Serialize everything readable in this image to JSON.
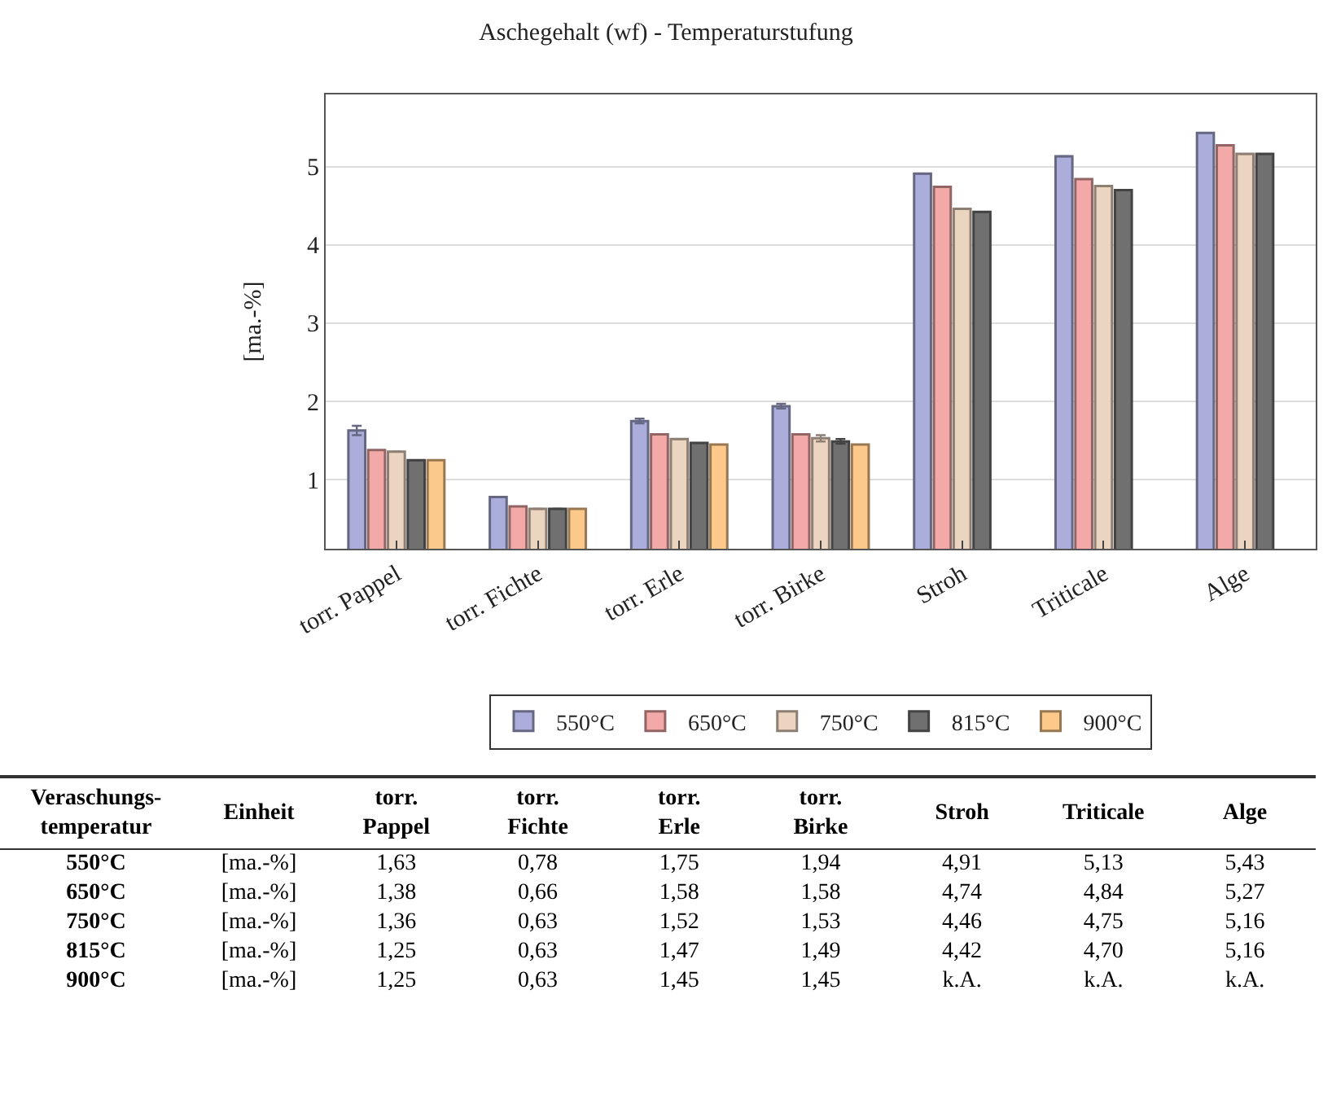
{
  "chart_data": {
    "type": "bar",
    "title": "Aschegehalt (wf) - Temperaturstufung",
    "ylabel": "[ma.-%]",
    "categories": [
      "torr. Pappel",
      "torr. Fichte",
      "torr. Erle",
      "torr. Birke",
      "Stroh",
      "Triticale",
      "Alge"
    ],
    "series": [
      {
        "name": "550°C",
        "color": "#abaedb",
        "values": [
          1.63,
          0.78,
          1.75,
          1.94,
          4.91,
          5.13,
          5.43
        ],
        "errors": [
          0.06,
          null,
          0.03,
          0.03,
          null,
          null,
          null
        ],
        "value_labels": [
          "1,63",
          "0,78",
          "1,75",
          "1,94",
          "4,91",
          "5,13",
          "5,43"
        ]
      },
      {
        "name": "650°C",
        "color": "#f4a9a9",
        "values": [
          1.38,
          0.66,
          1.58,
          1.58,
          4.74,
          4.84,
          5.27
        ],
        "value_labels": [
          "1,38",
          "0,66",
          "1,58",
          "1,58",
          "4,74",
          "4,84",
          "5,27"
        ]
      },
      {
        "name": "750°C",
        "color": "#ecd5c0",
        "values": [
          1.36,
          0.63,
          1.52,
          1.53,
          4.46,
          4.75,
          5.16
        ],
        "errors": [
          null,
          null,
          null,
          0.04,
          null,
          null,
          null
        ],
        "value_labels": [
          "1,36",
          "0,63",
          "1,52",
          "1,53",
          "4,46",
          "4,75",
          "5,16"
        ]
      },
      {
        "name": "815°C",
        "color": "#707070",
        "values": [
          1.25,
          0.63,
          1.47,
          1.49,
          4.42,
          4.7,
          5.16
        ],
        "errors": [
          null,
          null,
          null,
          0.03,
          null,
          null,
          null
        ],
        "value_labels": [
          "1,25",
          "0,63",
          "1,47",
          "1,49",
          "4,42",
          "4,70",
          "5,16"
        ]
      },
      {
        "name": "900°C",
        "color": "#fcc98a",
        "values": [
          1.25,
          0.63,
          1.45,
          1.45,
          null,
          null,
          null
        ],
        "value_labels": [
          "1,25",
          "0,63",
          "1,45",
          "1,45",
          "k.A.",
          "k.A.",
          "k.A."
        ]
      }
    ],
    "ylim": [
      0.12,
      5.92
    ],
    "yticks": [
      1,
      2,
      3,
      4,
      5
    ],
    "grid": "y",
    "legend": "bottom",
    "annotations": [
      "Veraschungs-temperatur",
      "Einheit"
    ]
  }
}
